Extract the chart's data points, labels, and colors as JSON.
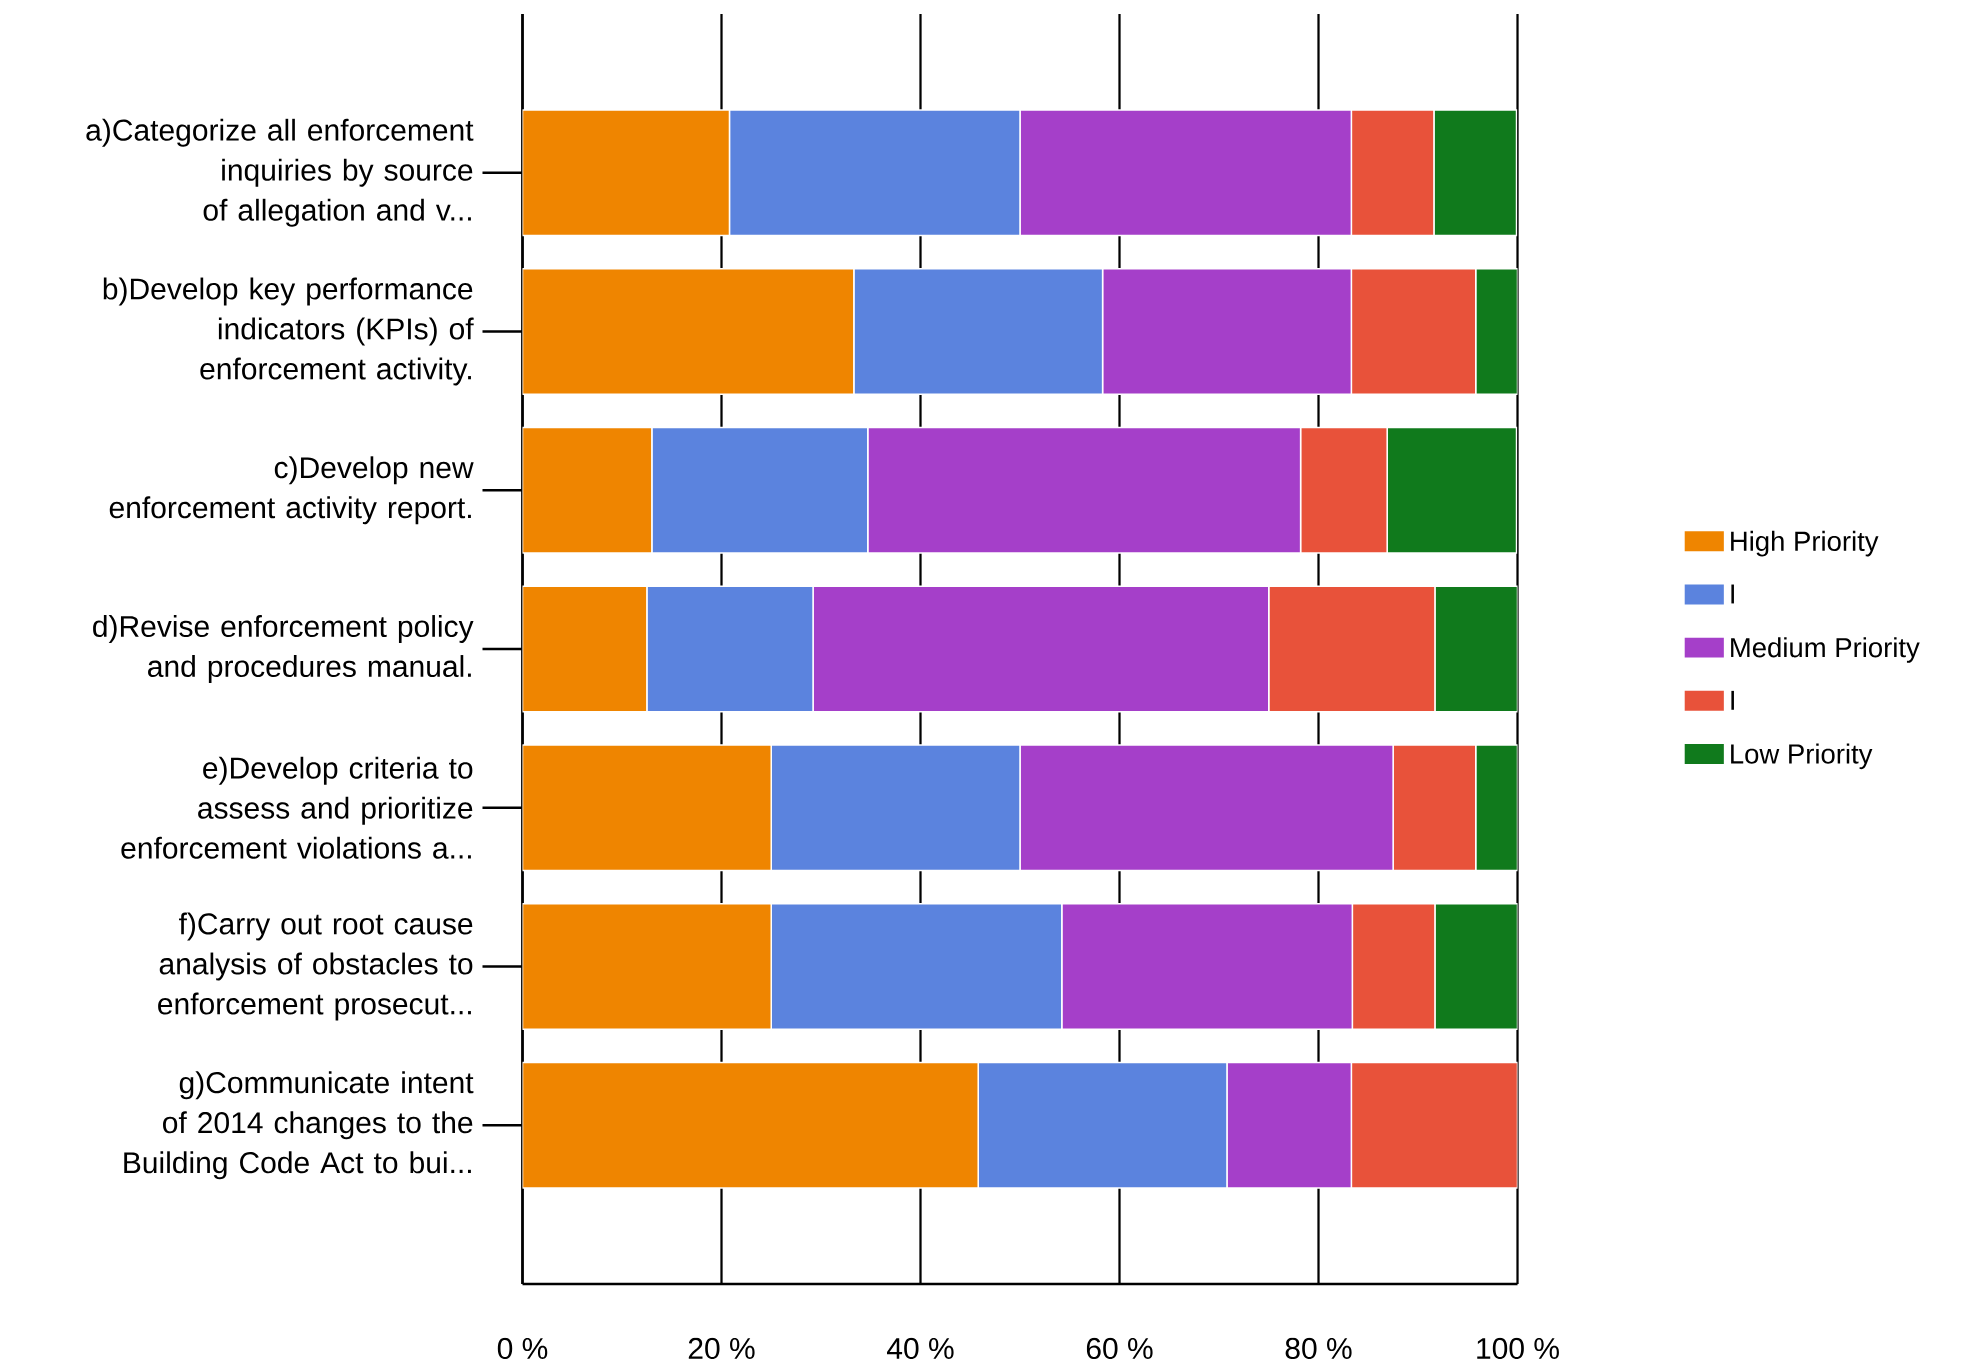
{
  "chart_data": {
    "type": "bar",
    "orientation": "horizontal",
    "stacked": true,
    "categories": [
      "a)Categorize all enforcement inquiries by source of allegation and v...",
      "b)Develop key performance indicators (KPIs) of enforcement activity.",
      "c)Develop new enforcement activity report.",
      "d)Revise enforcement policy and procedures manual.",
      "e)Develop criteria to assess and prioritize enforcement violations a...",
      "f)Carry out root cause analysis of obstacles to enforcement prosecut...",
      "g)Communicate intent of 2014 changes to the Building Code Act to bui..."
    ],
    "series": [
      {
        "name": "High Priority",
        "color": "#ef8500",
        "values": [
          20.8,
          33.3,
          13.0,
          12.5,
          25.0,
          25.0,
          45.8
        ]
      },
      {
        "name": "I",
        "color": "#5b83de",
        "values": [
          29.2,
          25.0,
          21.7,
          16.7,
          25.0,
          29.2,
          25.0
        ]
      },
      {
        "name": "Medium Priority",
        "color": "#a53fc9",
        "values": [
          33.3,
          25.0,
          43.5,
          45.8,
          37.5,
          29.2,
          12.5
        ]
      },
      {
        "name": "I",
        "color": "#e8523a",
        "values": [
          8.3,
          12.5,
          8.7,
          16.7,
          8.3,
          8.3,
          16.7
        ]
      },
      {
        "name": "Low Priority",
        "color": "#107a1c",
        "values": [
          8.3,
          4.2,
          13.0,
          8.3,
          4.2,
          8.3,
          0
        ]
      }
    ],
    "xlim": [
      0,
      100
    ],
    "xticks": [
      {
        "value": 0,
        "label": "0 %"
      },
      {
        "value": 20,
        "label": "20 %"
      },
      {
        "value": 40,
        "label": "40 %"
      },
      {
        "value": 60,
        "label": "60 %"
      },
      {
        "value": 80,
        "label": "80 %"
      },
      {
        "value": 100,
        "label": "100 %"
      }
    ],
    "grid": "x",
    "legend": "right"
  }
}
